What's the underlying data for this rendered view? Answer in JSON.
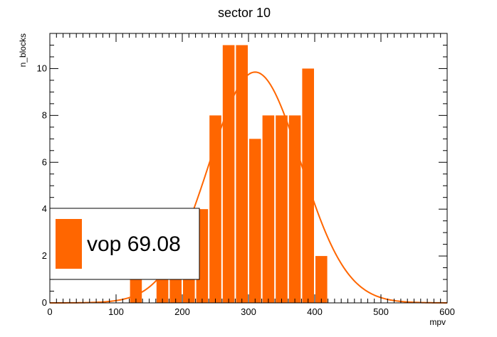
{
  "chart_data": {
    "type": "bar",
    "title": "sector 10",
    "xlabel": "mpv",
    "ylabel": "n_blocks",
    "xlim": [
      0,
      600
    ],
    "ylim": [
      0,
      11.5
    ],
    "bin_width": 20,
    "bins": [
      {
        "x": 120,
        "value": 1
      },
      {
        "x": 160,
        "value": 2
      },
      {
        "x": 180,
        "value": 2
      },
      {
        "x": 200,
        "value": 1
      },
      {
        "x": 220,
        "value": 4
      },
      {
        "x": 240,
        "value": 8
      },
      {
        "x": 260,
        "value": 11
      },
      {
        "x": 280,
        "value": 11
      },
      {
        "x": 300,
        "value": 7
      },
      {
        "x": 320,
        "value": 8
      },
      {
        "x": 340,
        "value": 8
      },
      {
        "x": 360,
        "value": 8
      },
      {
        "x": 380,
        "value": 10
      },
      {
        "x": 400,
        "value": 2
      }
    ],
    "fit": {
      "type": "gaussian",
      "amplitude": 9.85,
      "mean": 310,
      "sigma": 69.08
    },
    "x_ticks": [
      0,
      100,
      200,
      300,
      400,
      500,
      600
    ],
    "y_ticks": [
      0,
      2,
      4,
      6,
      8,
      10
    ],
    "bar_color": "#ff6600",
    "fit_color": "#ff6600",
    "legend": {
      "label": "vop 69.08",
      "placement": "lower-left"
    }
  }
}
